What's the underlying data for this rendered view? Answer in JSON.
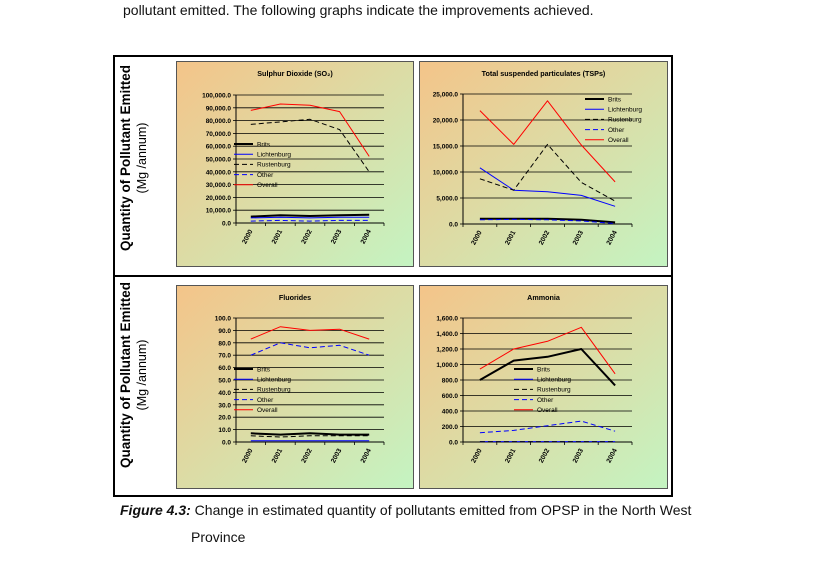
{
  "intro_text": "pollutant emitted.  The following graphs indicate the improvements achieved.",
  "y_axis_label": {
    "line1": "Quantity of Pollutant Emitted",
    "line2": "(Mg /annum)"
  },
  "caption": {
    "label": "Figure 4.3:",
    "text": " Change in estimated quantity of pollutants emitted from OPSP in the North West",
    "text2": "Province"
  },
  "colors": {
    "panel_bg_start": "#f4c489",
    "panel_bg_end": "#c4f4c2"
  },
  "chart_data": [
    {
      "type": "line",
      "title": "Sulphur Dioxide (SO₂)",
      "categories": [
        "2000",
        "2001",
        "2002",
        "2003",
        "2004"
      ],
      "ylim": [
        0,
        100000
      ],
      "yticks": [
        "0.0",
        "10,000.0",
        "20,000.0",
        "30,000.0",
        "40,000.0",
        "50,000.0",
        "60,000.0",
        "70,000.0",
        "80,000.0",
        "90,000.0",
        "100,000.0"
      ],
      "grid": true,
      "legend": "left-middle",
      "series": [
        {
          "name": "Brits",
          "color": "#000000",
          "dash": "solid",
          "width": 2,
          "values": [
            5000,
            6000,
            5500,
            6000,
            6500
          ]
        },
        {
          "name": "Lichtenburg",
          "color": "#0000ff",
          "dash": "solid",
          "width": 1,
          "values": [
            4000,
            4500,
            4000,
            4500,
            4500
          ]
        },
        {
          "name": "Rustenburg",
          "color": "#000000",
          "dash": "dashed",
          "width": 1,
          "values": [
            77000,
            79000,
            81000,
            73000,
            40000
          ]
        },
        {
          "name": "Other",
          "color": "#0000ff",
          "dash": "dashed",
          "width": 1,
          "values": [
            1500,
            2000,
            1500,
            2000,
            2000
          ]
        },
        {
          "name": "Overall",
          "color": "#ff0000",
          "dash": "solid",
          "width": 1,
          "values": [
            88000,
            93000,
            92000,
            87000,
            52000
          ]
        }
      ]
    },
    {
      "type": "line",
      "title": "Total suspended particulates (TSPs)",
      "categories": [
        "2000",
        "2001",
        "2002",
        "2003",
        "2004"
      ],
      "ylim": [
        0,
        25000
      ],
      "yticks": [
        "0.0",
        "5,000.0",
        "10,000.0",
        "15,000.0",
        "20,000.0",
        "25,000.0"
      ],
      "grid": true,
      "legend": "top-right",
      "series": [
        {
          "name": "Brits",
          "color": "#000000",
          "dash": "solid",
          "width": 2,
          "values": [
            1000,
            1000,
            1000,
            800,
            300
          ]
        },
        {
          "name": "Lichtenburg",
          "color": "#0000ff",
          "dash": "solid",
          "width": 1,
          "values": [
            10800,
            6500,
            6200,
            5500,
            3400
          ]
        },
        {
          "name": "Rustenburg",
          "color": "#000000",
          "dash": "dashed",
          "width": 1,
          "values": [
            8700,
            6500,
            15300,
            8000,
            4400
          ]
        },
        {
          "name": "Other",
          "color": "#0000ff",
          "dash": "dashed",
          "width": 1,
          "values": [
            800,
            900,
            800,
            600,
            100
          ]
        },
        {
          "name": "Overall",
          "color": "#ff0000",
          "dash": "solid",
          "width": 1,
          "values": [
            21800,
            15300,
            23700,
            15200,
            8100
          ]
        }
      ]
    },
    {
      "type": "line",
      "title": "Fluorides",
      "categories": [
        "2000",
        "2001",
        "2002",
        "2003",
        "2004"
      ],
      "ylim": [
        0,
        100
      ],
      "yticks": [
        "0.0",
        "10.0",
        "20.0",
        "30.0",
        "40.0",
        "50.0",
        "60.0",
        "70.0",
        "80.0",
        "90.0",
        "100.0"
      ],
      "grid": true,
      "legend": "left-middle",
      "series": [
        {
          "name": "Brits",
          "color": "#000000",
          "dash": "solid",
          "width": 2,
          "values": [
            7,
            6,
            7,
            6,
            6
          ]
        },
        {
          "name": "Lichtenburg",
          "color": "#0000ff",
          "dash": "solid",
          "width": 1,
          "values": [
            1,
            1,
            1,
            1,
            1
          ]
        },
        {
          "name": "Rustenburg",
          "color": "#000000",
          "dash": "dashed",
          "width": 1,
          "values": [
            5,
            4,
            5,
            5,
            5
          ]
        },
        {
          "name": "Other",
          "color": "#0000ff",
          "dash": "dashed",
          "width": 1,
          "values": [
            70,
            80,
            76,
            78,
            70
          ]
        },
        {
          "name": "Overall",
          "color": "#ff0000",
          "dash": "solid",
          "width": 1,
          "values": [
            83,
            93,
            90,
            91,
            83
          ]
        }
      ]
    },
    {
      "type": "line",
      "title": "Ammonia",
      "categories": [
        "2000",
        "2001",
        "2002",
        "2003",
        "2004"
      ],
      "ylim": [
        0,
        1600
      ],
      "yticks": [
        "0.0",
        "200.0",
        "400.0",
        "600.0",
        "800.0",
        "1,000.0",
        "1,200.0",
        "1,400.0",
        "1,600.0"
      ],
      "grid": true,
      "legend": "right-middle",
      "series": [
        {
          "name": "Brits",
          "color": "#000000",
          "dash": "solid",
          "width": 2,
          "values": [
            800,
            1050,
            1100,
            1200,
            730
          ]
        },
        {
          "name": "Lichtenburg",
          "color": "#0000ff",
          "dash": "solid",
          "width": 1,
          "values": [
            5,
            5,
            5,
            5,
            5
          ]
        },
        {
          "name": "Rustenburg",
          "color": "#000000",
          "dash": "dashed",
          "width": 1,
          "values": [
            3,
            3,
            3,
            3,
            3
          ]
        },
        {
          "name": "Other",
          "color": "#0000ff",
          "dash": "dashed",
          "width": 1,
          "values": [
            120,
            150,
            210,
            270,
            140
          ]
        },
        {
          "name": "Overall",
          "color": "#ff0000",
          "dash": "solid",
          "width": 1,
          "values": [
            940,
            1200,
            1300,
            1480,
            880
          ]
        }
      ]
    }
  ]
}
